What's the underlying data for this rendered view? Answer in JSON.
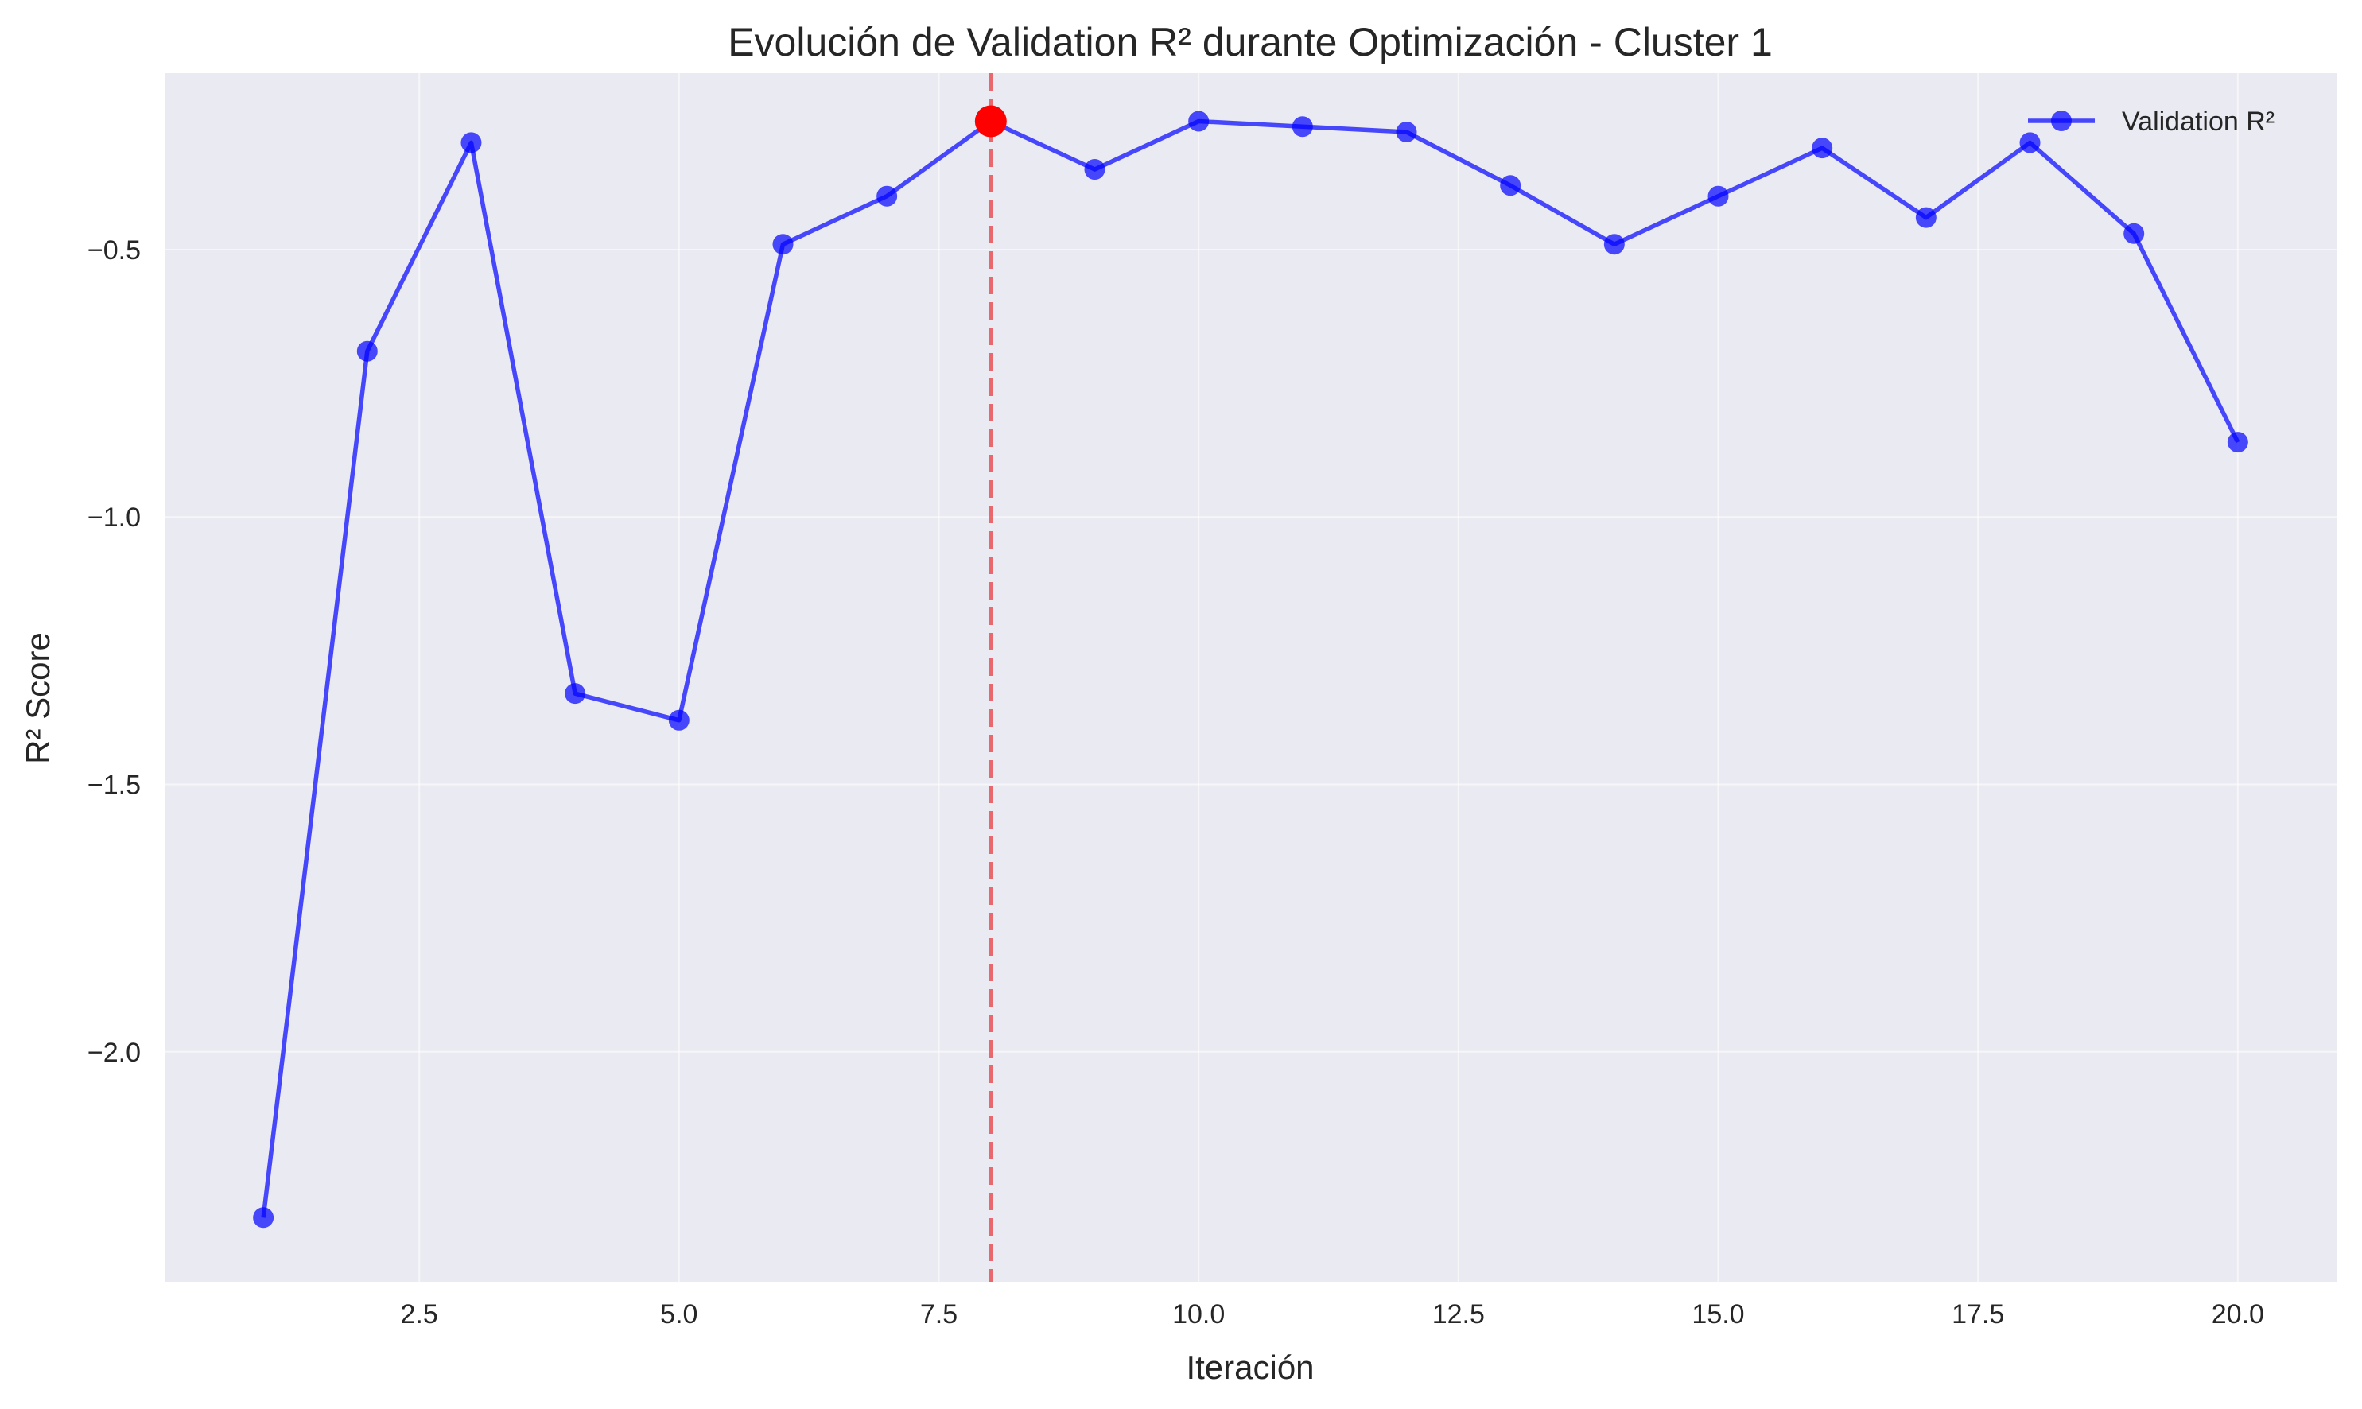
{
  "chart_data": {
    "type": "line",
    "title": "Evolución de Validation R² durante Optimización - Cluster 1",
    "xlabel": "Iteración",
    "ylabel": "R² Score",
    "xlim": [
      0.05,
      20.95
    ],
    "ylim": [
      -2.43,
      -0.17
    ],
    "xticks": [
      2.5,
      5.0,
      7.5,
      10.0,
      12.5,
      15.0,
      17.5,
      20.0
    ],
    "xtick_labels": [
      "2.5",
      "5.0",
      "7.5",
      "10.0",
      "12.5",
      "15.0",
      "17.5",
      "20.0"
    ],
    "yticks": [
      -2.0,
      -1.5,
      -1.0,
      -0.5
    ],
    "ytick_labels": [
      "−2.0",
      "−1.5",
      "−1.0",
      "−0.5"
    ],
    "grid": true,
    "legend_position": "top-right",
    "series": [
      {
        "name": "Validation R²",
        "color": "#0000ff",
        "x": [
          1,
          2,
          3,
          4,
          5,
          6,
          7,
          8,
          9,
          10,
          11,
          12,
          13,
          14,
          15,
          16,
          17,
          18,
          19,
          20
        ],
        "y": [
          -2.31,
          -0.69,
          -0.3,
          -1.33,
          -1.38,
          -0.49,
          -0.4,
          -0.26,
          -0.35,
          -0.26,
          -0.27,
          -0.28,
          -0.38,
          -0.49,
          -0.4,
          -0.31,
          -0.44,
          -0.3,
          -0.47,
          -0.86
        ]
      }
    ],
    "best_iteration": {
      "x": 8,
      "y": -0.26,
      "color": "#ff0000"
    },
    "vline": {
      "x": 8,
      "color": "#e8474c",
      "style": "dashed"
    }
  }
}
